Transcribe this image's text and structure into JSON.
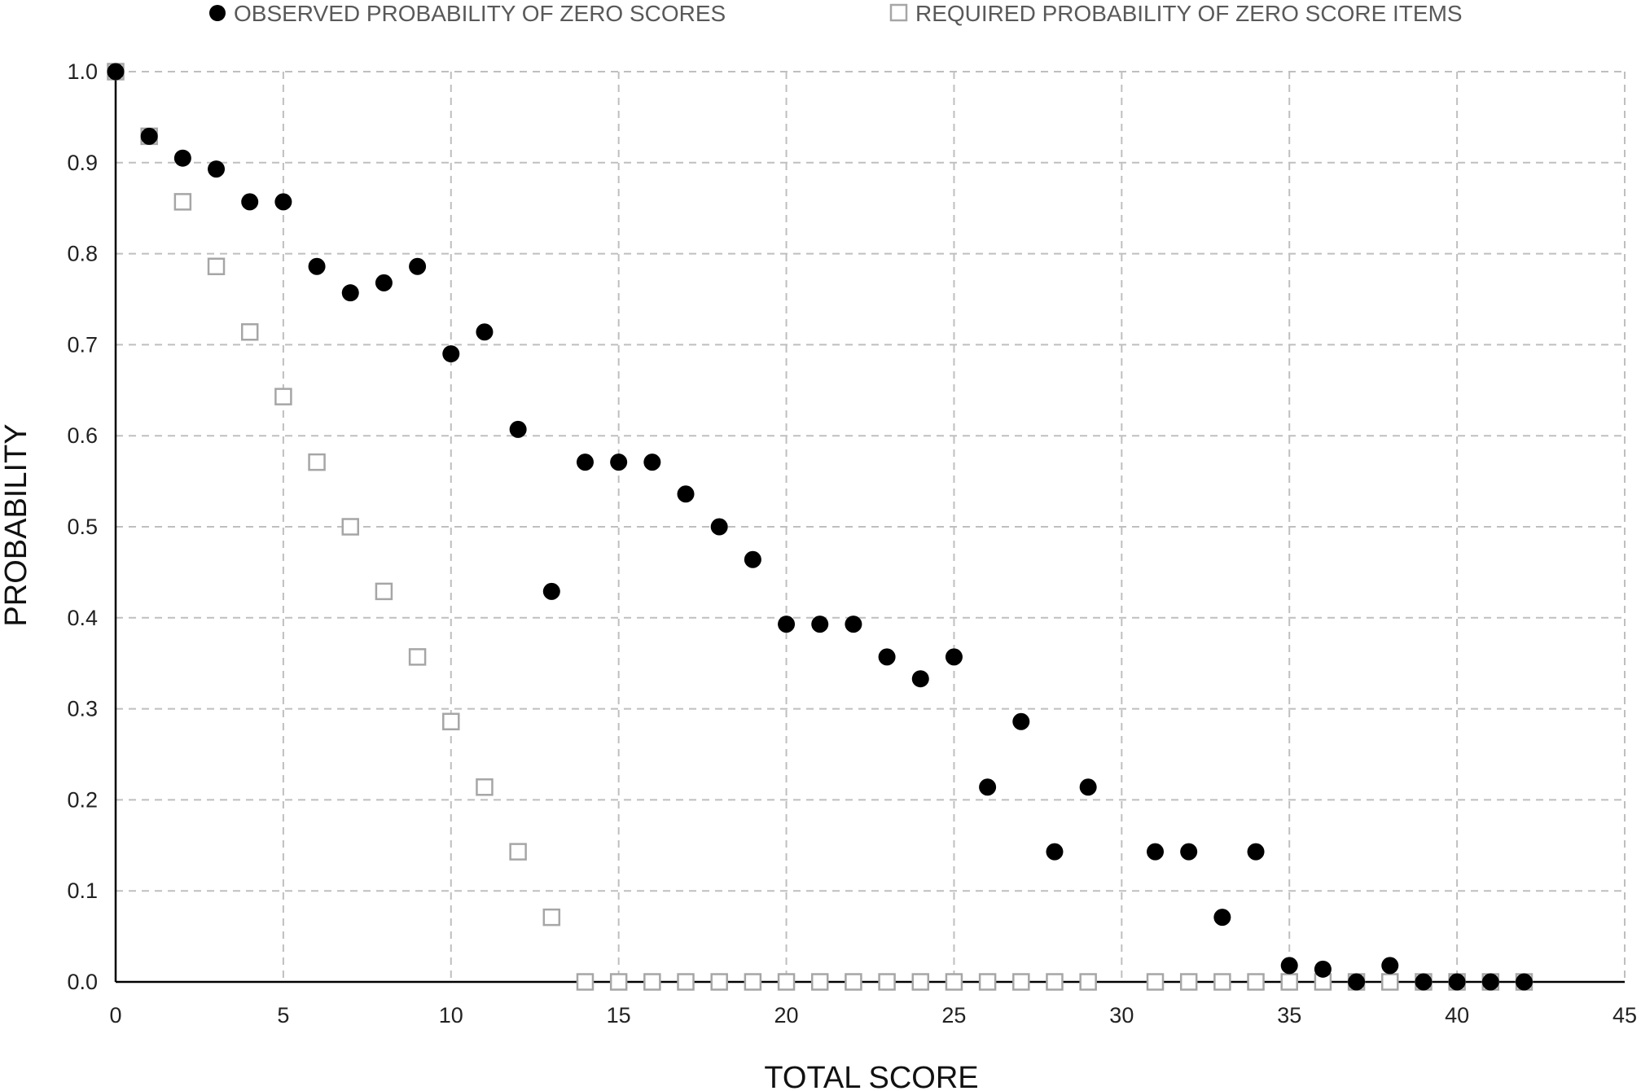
{
  "chart_data": {
    "type": "scatter",
    "title": "",
    "xlabel": "TOTAL SCORE",
    "ylabel": "PROBABILITY",
    "xlim": [
      0,
      45
    ],
    "ylim": [
      0,
      1.0
    ],
    "xticks": [
      "0",
      "5",
      "10",
      "15",
      "20",
      "25",
      "30",
      "35",
      "40",
      "45"
    ],
    "yticks": [
      "0.0",
      "0.1",
      "0.2",
      "0.3",
      "0.4",
      "0.5",
      "0.6",
      "0.7",
      "0.8",
      "0.9",
      "1.0"
    ],
    "grid": true,
    "legend_position": "top",
    "series": [
      {
        "name": "OBSERVED PROBABILITY OF ZERO SCORES",
        "marker": "circle-filled",
        "color": "#000000",
        "points": [
          [
            0,
            1.0
          ],
          [
            1,
            0.929
          ],
          [
            2,
            0.905
          ],
          [
            3,
            0.893
          ],
          [
            4,
            0.857
          ],
          [
            5,
            0.857
          ],
          [
            6,
            0.786
          ],
          [
            7,
            0.757
          ],
          [
            8,
            0.768
          ],
          [
            9,
            0.786
          ],
          [
            10,
            0.69
          ],
          [
            11,
            0.714
          ],
          [
            12,
            0.607
          ],
          [
            13,
            0.429
          ],
          [
            14,
            0.571
          ],
          [
            15,
            0.571
          ],
          [
            16,
            0.571
          ],
          [
            17,
            0.536
          ],
          [
            18,
            0.5
          ],
          [
            19,
            0.464
          ],
          [
            20,
            0.393
          ],
          [
            21,
            0.393
          ],
          [
            22,
            0.393
          ],
          [
            23,
            0.357
          ],
          [
            24,
            0.333
          ],
          [
            25,
            0.357
          ],
          [
            26,
            0.214
          ],
          [
            27,
            0.286
          ],
          [
            28,
            0.143
          ],
          [
            29,
            0.214
          ],
          [
            31,
            0.143
          ],
          [
            32,
            0.143
          ],
          [
            33,
            0.071
          ],
          [
            34,
            0.143
          ],
          [
            35,
            0.018
          ],
          [
            36,
            0.014
          ],
          [
            37,
            0.0
          ],
          [
            38,
            0.018
          ],
          [
            39,
            0.0
          ],
          [
            40,
            0.0
          ],
          [
            41,
            0.0
          ],
          [
            42,
            0.0
          ]
        ]
      },
      {
        "name": "REQUIRED PROBABILITY OF ZERO SCORE ITEMS",
        "marker": "square-open",
        "color": "#a6a6a6",
        "points": [
          [
            0,
            1.0
          ],
          [
            1,
            0.929
          ],
          [
            2,
            0.857
          ],
          [
            3,
            0.786
          ],
          [
            4,
            0.714
          ],
          [
            5,
            0.643
          ],
          [
            6,
            0.571
          ],
          [
            7,
            0.5
          ],
          [
            8,
            0.429
          ],
          [
            9,
            0.357
          ],
          [
            10,
            0.286
          ],
          [
            11,
            0.214
          ],
          [
            12,
            0.143
          ],
          [
            13,
            0.071
          ],
          [
            14,
            0.0
          ],
          [
            15,
            0.0
          ],
          [
            16,
            0.0
          ],
          [
            17,
            0.0
          ],
          [
            18,
            0.0
          ],
          [
            19,
            0.0
          ],
          [
            20,
            0.0
          ],
          [
            21,
            0.0
          ],
          [
            22,
            0.0
          ],
          [
            23,
            0.0
          ],
          [
            24,
            0.0
          ],
          [
            25,
            0.0
          ],
          [
            26,
            0.0
          ],
          [
            27,
            0.0
          ],
          [
            28,
            0.0
          ],
          [
            29,
            0.0
          ],
          [
            31,
            0.0
          ],
          [
            32,
            0.0
          ],
          [
            33,
            0.0
          ],
          [
            34,
            0.0
          ],
          [
            35,
            0.0
          ],
          [
            36,
            0.0
          ],
          [
            37,
            0.0
          ],
          [
            38,
            0.0
          ],
          [
            39,
            0.0
          ],
          [
            40,
            0.0
          ],
          [
            41,
            0.0
          ],
          [
            42,
            0.0
          ]
        ]
      }
    ]
  }
}
